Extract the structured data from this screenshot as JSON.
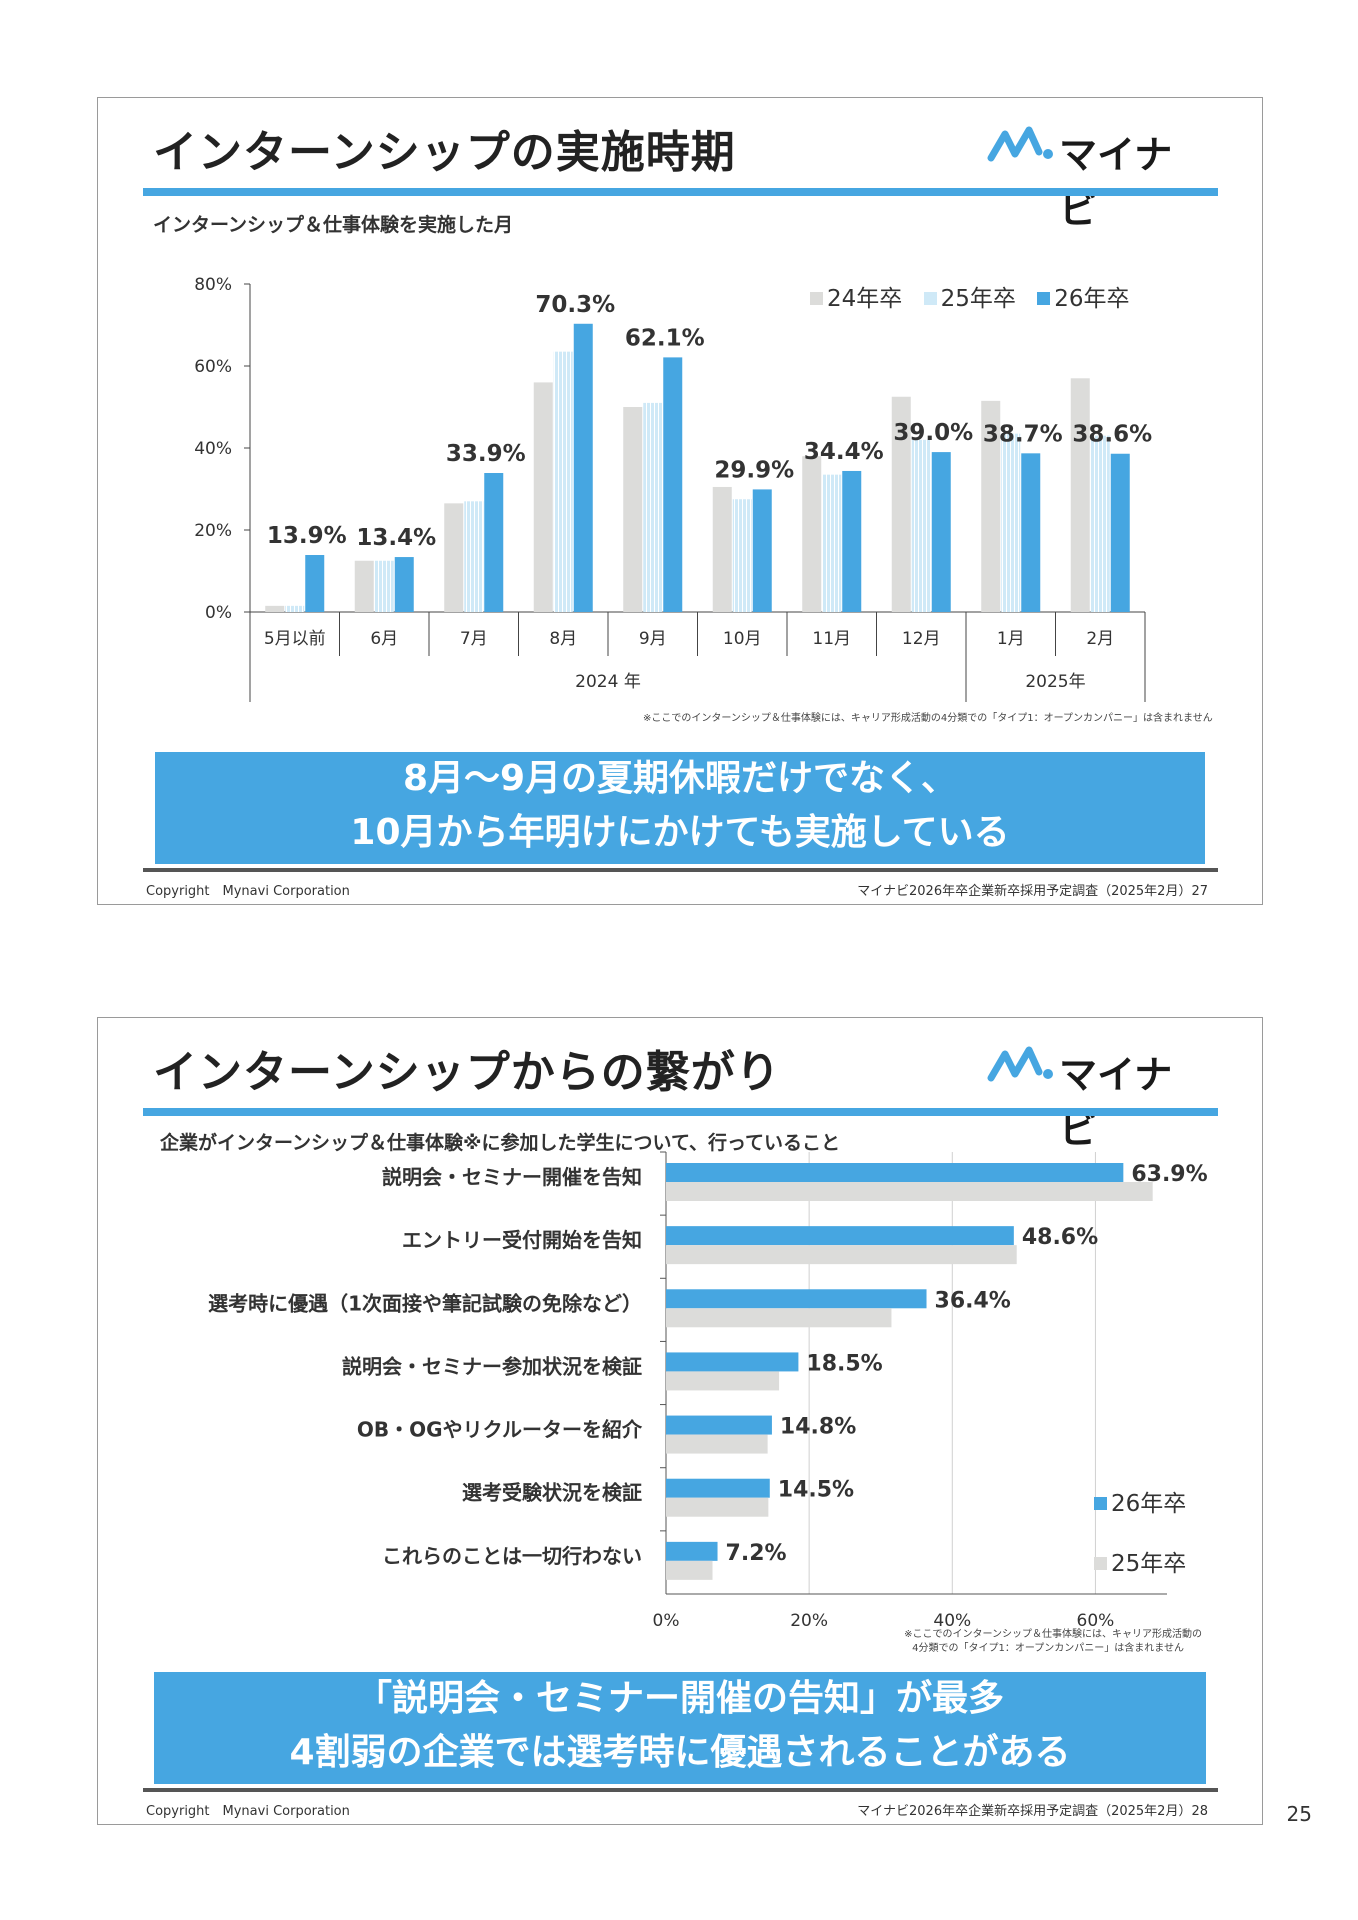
{
  "page_number": "25",
  "slides": [
    {
      "title": "インターンシップの実施時期",
      "brand": "マイナビ",
      "subtitle": "インターンシップ＆仕事体験を実施した月",
      "note": "※ここでのインターンシップ＆仕事体験には、キャリア形成活動の4分類での「タイプ1：オープンカンパニー」は含まれません",
      "banner_lines": [
        "8月～9月の夏期休暇だけでなく、",
        "10月から年明けにかけても実施している"
      ],
      "footer_left": "Copyright　Mynavi Corporation",
      "footer_right": "マイナビ2026年卒企業新卒採用予定調査（2025年2月）",
      "slide_no": "27"
    },
    {
      "title": "インターンシップからの繋がり",
      "brand": "マイナビ",
      "subtitle": "企業がインターンシップ＆仕事体験※に参加した学生について、行っていること",
      "note_lines": [
        "※ここでのインターンシップ＆仕事体験には、キャリア形成活動の",
        "4分類での「タイプ1：オープンカンパニー」は含まれません"
      ],
      "banner_lines": [
        "「説明会・セミナー開催の告知」が最多",
        "4割弱の企業では選考時に優遇されることがある"
      ],
      "footer_left": "Copyright　Mynavi Corporation",
      "footer_right": "マイナビ2026年卒企業新卒採用予定調査（2025年2月）",
      "slide_no": "28"
    }
  ],
  "colors": {
    "accent": "#46a6e1",
    "grey_series": "#dcdcda",
    "light_series": "#cfe9f7"
  },
  "chart_data": [
    {
      "type": "bar",
      "categories": [
        "5月以前",
        "6月",
        "7月",
        "8月",
        "9月",
        "10月",
        "11月",
        "12月",
        "1月",
        "2月"
      ],
      "groups": [
        {
          "label": "2024 年",
          "from": 0,
          "to": 7
        },
        {
          "label": "2025年",
          "from": 8,
          "to": 9
        }
      ],
      "series": [
        {
          "name": "24年卒",
          "values": [
            1.5,
            12.5,
            26.5,
            56.0,
            50.0,
            30.5,
            38.0,
            52.5,
            51.5,
            57.0
          ]
        },
        {
          "name": "25年卒",
          "values": [
            1.5,
            12.5,
            27.0,
            63.5,
            51.0,
            27.5,
            33.5,
            42.0,
            43.5,
            43.0
          ]
        },
        {
          "name": "26年卒",
          "values": [
            13.9,
            13.4,
            33.9,
            70.3,
            62.1,
            29.9,
            34.4,
            39.0,
            38.7,
            38.6
          ],
          "labels": [
            "13.9%",
            "13.4%",
            "33.9%",
            "70.3%",
            "62.1%",
            "29.9%",
            "34.4%",
            "39.0%",
            "38.7%",
            "38.6%"
          ]
        }
      ],
      "ylim": [
        0,
        80
      ],
      "yticks": [
        "0%",
        "20%",
        "40%",
        "60%",
        "80%"
      ],
      "legend_position": "top-right"
    },
    {
      "type": "bar",
      "orientation": "horizontal",
      "categories": [
        "説明会・セミナー開催を告知",
        "エントリー受付開始を告知",
        "選考時に優遇（1次面接や筆記試験の免除など）",
        "説明会・セミナー参加状況を検証",
        "OB・OGやリクルーターを紹介",
        "選考受験状況を検証",
        "これらのことは一切行わない"
      ],
      "series": [
        {
          "name": "26年卒",
          "values": [
            63.9,
            48.6,
            36.4,
            18.5,
            14.8,
            14.5,
            7.2
          ],
          "labels": [
            "63.9%",
            "48.6%",
            "36.4%",
            "18.5%",
            "14.8%",
            "14.5%",
            "7.2%"
          ]
        },
        {
          "name": "25年卒",
          "values": [
            68.0,
            49.0,
            31.5,
            15.8,
            14.2,
            14.3,
            6.5
          ]
        }
      ],
      "xlim": [
        0,
        70
      ],
      "xticks": [
        "0%",
        "20%",
        "40%",
        "60%"
      ],
      "legend_position": "right"
    }
  ]
}
